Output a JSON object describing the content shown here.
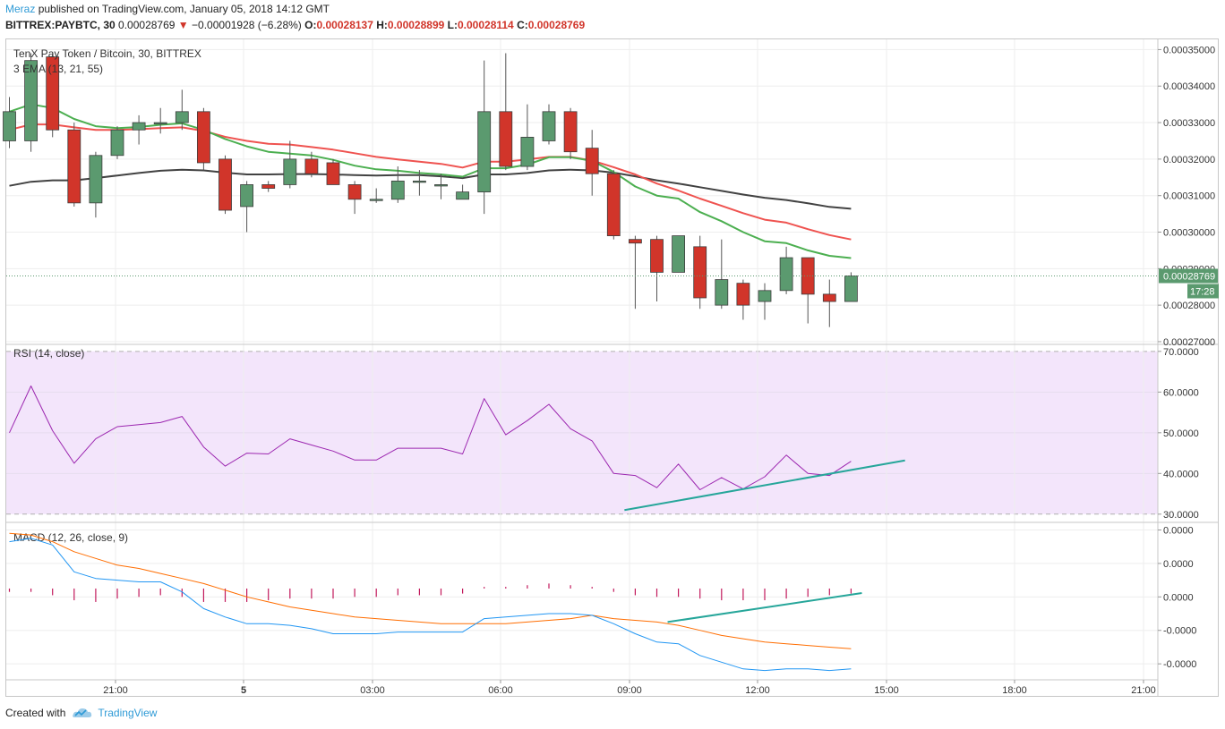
{
  "header": {
    "author": "Meraz",
    "published_text": "published on TradingView.com, January 05, 2018 14:12 GMT",
    "symbol": "BITTREX:PAYBTC, 30",
    "last": "0.00028769",
    "change_arrow": "▼",
    "change": "−0.00001928 (−6.28%)",
    "o_label": "O:",
    "o_val": "0.00028137",
    "h_label": "H:",
    "h_val": "0.00028899",
    "l_label": "L:",
    "l_val": "0.00028114",
    "c_label": "C:",
    "c_val": "0.00028769"
  },
  "footer": {
    "created_with": "Created with",
    "brand": "TradingView",
    "logo_icon": "tradingview-cloud-icon"
  },
  "colors": {
    "up": "#5b9a6f",
    "down": "#d1352a",
    "ema13": "#4caf50",
    "ema21": "#ef5350",
    "ema55": "#424242",
    "rsi_line": "#9c27b0",
    "rsi_band": "#f3e5fb",
    "macd_line": "#2196f3",
    "signal_line": "#ff6d00",
    "hist": "#c2185b",
    "trend": "#26a69a"
  },
  "chart_data": [
    {
      "type": "candlestick",
      "title": "TenX Pay Token / Bitcoin, 30, BITTREX",
      "indicator_label": "3 EMA (13, 21, 55)",
      "x_labels": [
        "21:00",
        "5",
        "03:00",
        "06:00",
        "09:00",
        "12:00",
        "15:00",
        "18:00",
        "21:00"
      ],
      "y_ticks": [
        "0.00035000",
        "0.00034000",
        "0.00033000",
        "0.00032000",
        "0.00031000",
        "0.00030000",
        "0.00029000",
        "0.00028000",
        "0.00027000"
      ],
      "ylim": [
        0.0002695,
        0.0003528
      ],
      "price_label": "0.00028769",
      "countdown": "17:28",
      "candles": [
        {
          "o": 0.000325,
          "h": 0.000337,
          "l": 0.000323,
          "c": 0.000333
        },
        {
          "o": 0.000325,
          "h": 0.000349,
          "l": 0.000322,
          "c": 0.000347
        },
        {
          "o": 0.000348,
          "h": 0.000349,
          "l": 0.000326,
          "c": 0.000328
        },
        {
          "o": 0.000328,
          "h": 0.00033,
          "l": 0.000307,
          "c": 0.000308
        },
        {
          "o": 0.000308,
          "h": 0.000322,
          "l": 0.000304,
          "c": 0.000321
        },
        {
          "o": 0.000321,
          "h": 0.000329,
          "l": 0.00032,
          "c": 0.000328
        },
        {
          "o": 0.000328,
          "h": 0.000332,
          "l": 0.000324,
          "c": 0.00033
        },
        {
          "o": 0.00033,
          "h": 0.000334,
          "l": 0.000327,
          "c": 0.00033
        },
        {
          "o": 0.00033,
          "h": 0.000339,
          "l": 0.000328,
          "c": 0.000333
        },
        {
          "o": 0.000333,
          "h": 0.000334,
          "l": 0.000317,
          "c": 0.000319
        },
        {
          "o": 0.00032,
          "h": 0.000321,
          "l": 0.000305,
          "c": 0.000306
        },
        {
          "o": 0.000307,
          "h": 0.000314,
          "l": 0.0003,
          "c": 0.000313
        },
        {
          "o": 0.000313,
          "h": 0.000314,
          "l": 0.000311,
          "c": 0.000312
        },
        {
          "o": 0.000313,
          "h": 0.000325,
          "l": 0.000312,
          "c": 0.00032
        },
        {
          "o": 0.00032,
          "h": 0.000322,
          "l": 0.000315,
          "c": 0.000316
        },
        {
          "o": 0.000319,
          "h": 0.00032,
          "l": 0.000313,
          "c": 0.000313
        },
        {
          "o": 0.000313,
          "h": 0.000314,
          "l": 0.000305,
          "c": 0.000309
        },
        {
          "o": 0.000309,
          "h": 0.000312,
          "l": 0.000308,
          "c": 0.000309
        },
        {
          "o": 0.000309,
          "h": 0.000318,
          "l": 0.000308,
          "c": 0.000314
        },
        {
          "o": 0.000314,
          "h": 0.000317,
          "l": 0.00031,
          "c": 0.000314
        },
        {
          "o": 0.000313,
          "h": 0.000316,
          "l": 0.000309,
          "c": 0.000313
        },
        {
          "o": 0.000309,
          "h": 0.000313,
          "l": 0.000309,
          "c": 0.000311
        },
        {
          "o": 0.000311,
          "h": 0.000347,
          "l": 0.000305,
          "c": 0.000333
        },
        {
          "o": 0.000333,
          "h": 0.000349,
          "l": 0.000317,
          "c": 0.000318
        },
        {
          "o": 0.000318,
          "h": 0.000335,
          "l": 0.000317,
          "c": 0.000326
        },
        {
          "o": 0.000325,
          "h": 0.000335,
          "l": 0.000324,
          "c": 0.000333
        },
        {
          "o": 0.000333,
          "h": 0.000334,
          "l": 0.00032,
          "c": 0.000322
        },
        {
          "o": 0.000323,
          "h": 0.000328,
          "l": 0.00031,
          "c": 0.000316
        },
        {
          "o": 0.000316,
          "h": 0.000317,
          "l": 0.000298,
          "c": 0.000299
        },
        {
          "o": 0.000298,
          "h": 0.000299,
          "l": 0.000279,
          "c": 0.000297
        },
        {
          "o": 0.000298,
          "h": 0.000299,
          "l": 0.000281,
          "c": 0.000289
        },
        {
          "o": 0.000289,
          "h": 0.000299,
          "l": 0.000289,
          "c": 0.000299
        },
        {
          "o": 0.000296,
          "h": 0.000299,
          "l": 0.000279,
          "c": 0.000282
        },
        {
          "o": 0.00028,
          "h": 0.000298,
          "l": 0.000279,
          "c": 0.000287
        },
        {
          "o": 0.000286,
          "h": 0.000287,
          "l": 0.000276,
          "c": 0.00028
        },
        {
          "o": 0.000281,
          "h": 0.000286,
          "l": 0.000276,
          "c": 0.000284
        },
        {
          "o": 0.000284,
          "h": 0.000296,
          "l": 0.000283,
          "c": 0.000293
        },
        {
          "o": 0.000293,
          "h": 0.000293,
          "l": 0.000275,
          "c": 0.000283
        },
        {
          "o": 0.000283,
          "h": 0.000287,
          "l": 0.000274,
          "c": 0.000281
        },
        {
          "o": 0.000281,
          "h": 0.000289,
          "l": 0.000281,
          "c": 0.000288
        }
      ],
      "ema13": [
        0.000333,
        0.000335,
        0.000334,
        0.000331,
        0.000329,
        0.0003285,
        0.0003288,
        0.0003294,
        0.0003298,
        0.000328,
        0.0003255,
        0.0003235,
        0.000322,
        0.0003215,
        0.000321,
        0.0003198,
        0.0003182,
        0.0003172,
        0.0003168,
        0.0003162,
        0.0003158,
        0.0003152,
        0.0003175,
        0.0003175,
        0.0003185,
        0.0003205,
        0.0003205,
        0.0003195,
        0.0003165,
        0.0003125,
        0.00031,
        0.0003092,
        0.0003055,
        0.000303,
        0.0003,
        0.0002975,
        0.000297,
        0.000295,
        0.0002935,
        0.0002929
      ],
      "ema21": [
        0.000328,
        0.0003295,
        0.0003295,
        0.0003287,
        0.000328,
        0.000328,
        0.0003282,
        0.0003285,
        0.0003287,
        0.0003277,
        0.0003261,
        0.000325,
        0.0003242,
        0.000324,
        0.0003233,
        0.0003226,
        0.0003216,
        0.0003206,
        0.0003199,
        0.0003193,
        0.0003187,
        0.0003177,
        0.0003193,
        0.0003193,
        0.0003199,
        0.0003206,
        0.0003206,
        0.0003196,
        0.0003178,
        0.0003158,
        0.0003133,
        0.0003114,
        0.0003092,
        0.0003072,
        0.0003052,
        0.0003034,
        0.0003026,
        0.0003008,
        0.0002992,
        0.000298
      ],
      "ema55": [
        0.0003127,
        0.0003138,
        0.0003142,
        0.0003142,
        0.0003148,
        0.0003155,
        0.0003162,
        0.0003168,
        0.0003171,
        0.0003169,
        0.0003163,
        0.0003158,
        0.0003158,
        0.0003159,
        0.0003159,
        0.0003158,
        0.0003156,
        0.0003155,
        0.0003156,
        0.0003156,
        0.0003153,
        0.0003148,
        0.0003158,
        0.0003158,
        0.0003162,
        0.0003169,
        0.0003171,
        0.0003169,
        0.0003163,
        0.0003153,
        0.0003142,
        0.0003133,
        0.0003123,
        0.0003113,
        0.0003103,
        0.0003094,
        0.0003088,
        0.0003079,
        0.0003069,
        0.0003064
      ]
    },
    {
      "type": "line",
      "title": "RSI (14, close)",
      "y_ticks": [
        "70.0000",
        "60.0000",
        "50.0000",
        "40.0000",
        "30.0000"
      ],
      "ylim": [
        28.2,
        71.5
      ],
      "band": [
        30,
        70
      ],
      "values": [
        50,
        61.5,
        50.5,
        42.5,
        48.5,
        51.5,
        52,
        52.5,
        54,
        46.5,
        41.8,
        45,
        44.8,
        48.5,
        47,
        45.5,
        43.3,
        43.3,
        46.2,
        46.2,
        46.2,
        44.8,
        58.4,
        49.5,
        53,
        57,
        51,
        48,
        40,
        39.5,
        36.5,
        42.3,
        36,
        39,
        36.2,
        39.2,
        44.5,
        40,
        39.5,
        43
      ],
      "trendline": {
        "from": [
          28.5,
          31
        ],
        "to": [
          41.5,
          43.2
        ]
      }
    },
    {
      "type": "line",
      "title": "MACD (12, 26, close, 9)",
      "y_ticks": [
        "0.0000",
        "0.0000",
        "0.0000",
        "-0.0000",
        "-0.0000"
      ],
      "ylim": [
        -5.4e-06,
        3.9e-06
      ],
      "macd": [
        2.8e-06,
        3e-06,
        2.6e-06,
        1e-06,
        6e-07,
        5e-07,
        4e-07,
        4e-07,
        -2e-07,
        -1.2e-06,
        -1.7e-06,
        -2.1e-06,
        -2.1e-06,
        -2.2e-06,
        -2.4e-06,
        -2.7e-06,
        -2.7e-06,
        -2.7e-06,
        -2.6e-06,
        -2.6e-06,
        -2.6e-06,
        -2.6e-06,
        -1.8e-06,
        -1.7e-06,
        -1.6e-06,
        -1.5e-06,
        -1.5e-06,
        -1.6e-06,
        -2.1e-06,
        -2.7e-06,
        -3.2e-06,
        -3.3e-06,
        -4e-06,
        -4.4e-06,
        -4.8e-06,
        -4.9e-06,
        -4.8e-06,
        -4.8e-06,
        -4.9e-06,
        -4.8e-06
      ],
      "signal": [
        3.3e-06,
        3.2e-06,
        2.8e-06,
        2.2e-06,
        1.8e-06,
        1.4e-06,
        1.2e-06,
        9e-07,
        6e-07,
        3e-07,
        -1e-07,
        -5e-07,
        -8e-07,
        -1.1e-06,
        -1.3e-06,
        -1.5e-06,
        -1.7e-06,
        -1.8e-06,
        -1.9e-06,
        -2e-06,
        -2.1e-06,
        -2.1e-06,
        -2.1e-06,
        -2.1e-06,
        -2e-06,
        -1.9e-06,
        -1.8e-06,
        -1.6e-06,
        -1.8e-06,
        -1.9e-06,
        -2e-06,
        -2.2e-06,
        -2.5e-06,
        -2.8e-06,
        -3e-06,
        -3.2e-06,
        -3.3e-06,
        -3.4e-06,
        -3.5e-06,
        -3.6e-06
      ],
      "histogram": [
        -2e-07,
        -2e-07,
        -4e-07,
        -7e-07,
        -8e-07,
        -6e-07,
        -5e-07,
        -4e-07,
        -5e-07,
        -8e-07,
        -8e-07,
        -8e-07,
        -7e-07,
        -6e-07,
        -6e-07,
        -6e-07,
        -5e-07,
        -5e-07,
        -4e-07,
        -4e-07,
        -4e-07,
        -3e-07,
        1e-07,
        1e-07,
        2e-07,
        3e-07,
        2e-07,
        1e-07,
        -2e-07,
        -4e-07,
        -5e-07,
        -5e-07,
        -6e-07,
        -7e-07,
        -7e-07,
        -7e-07,
        -6e-07,
        -5e-07,
        -4e-07,
        -3e-07
      ],
      "trendline": {
        "from": [
          30.5,
          -2e-06
        ],
        "to": [
          39.5,
          -2.7e-07
        ]
      }
    }
  ]
}
